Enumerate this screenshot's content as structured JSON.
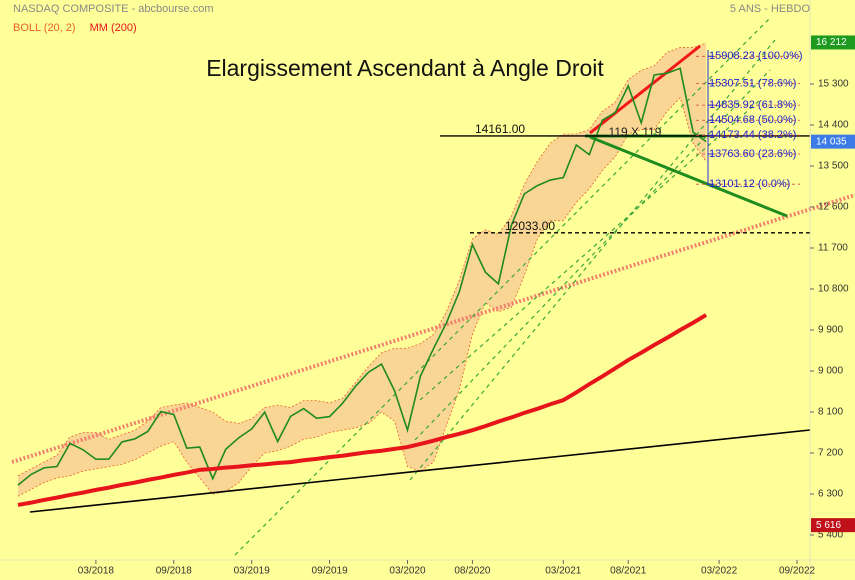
{
  "chart_data": {
    "type": "line",
    "title": "Elargissement Ascendant à Angle Droit",
    "subtitle": "NASDAQ COMPOSITE - abcbourse.com",
    "period": "5 ANS - HEBDO",
    "annotations": [
      "119 X 119"
    ],
    "x": [
      "09/2017",
      "10/2017",
      "11/2017",
      "12/2017",
      "01/2018",
      "02/2018",
      "03/2018",
      "04/2018",
      "05/2018",
      "06/2018",
      "07/2018",
      "08/2018",
      "09/2018",
      "10/2018",
      "11/2018",
      "12/2018",
      "01/2019",
      "02/2019",
      "03/2019",
      "04/2019",
      "05/2019",
      "06/2019",
      "07/2019",
      "08/2019",
      "09/2019",
      "10/2019",
      "11/2019",
      "12/2019",
      "01/2020",
      "02/2020",
      "03/2020",
      "04/2020",
      "05/2020",
      "06/2020",
      "07/2020",
      "08/2020",
      "09/2020",
      "10/2020",
      "11/2020",
      "12/2020",
      "01/2021",
      "02/2021",
      "03/2021",
      "04/2021",
      "05/2021",
      "06/2021",
      "07/2021",
      "08/2021",
      "09/2021",
      "10/2021",
      "11/2021",
      "12/2021",
      "01/2022",
      "02/2022"
    ],
    "series": [
      {
        "color": "#1f8a1f",
        "values": [
          6495,
          6728,
          6873,
          6903,
          7411,
          7273,
          7063,
          7066,
          7442,
          7510,
          7672,
          8109,
          8046,
          7306,
          7331,
          6635,
          7282,
          7533,
          7729,
          8095,
          7453,
          8006,
          8175,
          7963,
          7999,
          8292,
          8665,
          8973,
          9151,
          8567,
          7700,
          8890,
          9490,
          10058,
          10745,
          11775,
          11168,
          10912,
          12199,
          12888,
          13070,
          13192,
          13247,
          13962,
          13749,
          14504,
          14673,
          15259,
          14449,
          15498,
          15538,
          15645,
          14240,
          14035
        ]
      },
      {
        "name": "BOLL (20, 2)",
        "color": "#e8602c",
        "fill": "#f9cf94",
        "upper": [
          6700,
          6850,
          7000,
          7150,
          7550,
          7650,
          7650,
          7500,
          7600,
          7700,
          7900,
          8200,
          8250,
          8300,
          8200,
          8100,
          7900,
          7850,
          7950,
          8200,
          8250,
          8200,
          8350,
          8350,
          8300,
          8400,
          8750,
          9100,
          9400,
          9500,
          9500,
          9600,
          9800,
          10300,
          11000,
          11900,
          12100,
          12000,
          12400,
          13100,
          13600,
          14000,
          14200,
          14200,
          14300,
          14700,
          14900,
          15400,
          15600,
          15700,
          16000,
          16100,
          16100,
          16200
        ],
        "lower": [
          6250,
          6400,
          6550,
          6650,
          6700,
          6800,
          6850,
          6900,
          6950,
          7050,
          7200,
          7350,
          7450,
          7000,
          6650,
          6300,
          6350,
          6550,
          6900,
          7200,
          7250,
          7350,
          7500,
          7550,
          7650,
          7700,
          7750,
          7850,
          8100,
          7900,
          6900,
          6800,
          7000,
          7800,
          8600,
          9800,
          10500,
          10300,
          10400,
          11100,
          11900,
          12300,
          12300,
          12700,
          13000,
          13400,
          13700,
          14200,
          14300,
          14300,
          14700,
          15000,
          14000,
          13600
        ]
      },
      {
        "name": "MM (200)",
        "color": "#e8141c",
        "values": [
          6060,
          6110,
          6170,
          6220,
          6280,
          6330,
          6390,
          6440,
          6500,
          6550,
          6610,
          6660,
          6720,
          6770,
          6830,
          6850,
          6880,
          6900,
          6930,
          6950,
          6980,
          7000,
          7040,
          7070,
          7110,
          7140,
          7180,
          7220,
          7250,
          7290,
          7330,
          7400,
          7470,
          7550,
          7620,
          7700,
          7790,
          7890,
          7980,
          8080,
          8170,
          8270,
          8360,
          8530,
          8710,
          8880,
          9060,
          9240,
          9400,
          9570,
          9730,
          9900,
          10060,
          10230
        ]
      }
    ],
    "xlim": [
      "08/2017",
      "10/2022"
    ],
    "xticks": [
      "03/2018",
      "09/2018",
      "03/2019",
      "09/2019",
      "03/2020",
      "08/2020",
      "03/2021",
      "08/2021",
      "03/2022",
      "09/2022"
    ],
    "ylim": [
      4851,
      17144
    ],
    "yticks": [
      {
        "value": 5400,
        "label": "5 400"
      },
      {
        "value": 6300,
        "label": "6 300"
      },
      {
        "value": 7200,
        "label": "7 200"
      },
      {
        "value": 8100,
        "label": "8 100"
      },
      {
        "value": 9000,
        "label": "9 000"
      },
      {
        "value": 9900,
        "label": "9 900"
      },
      {
        "value": 10800,
        "label": "10 800"
      },
      {
        "value": 11700,
        "label": "11 700"
      },
      {
        "value": 12600,
        "label": "12 600"
      },
      {
        "value": 13500,
        "label": "13 500"
      },
      {
        "value": 14400,
        "label": "14 400"
      },
      {
        "value": 15300,
        "label": "15 300"
      }
    ],
    "grid": false,
    "price_tags": [
      {
        "value": 16212,
        "label": "16 212",
        "color": "#1e9a1e"
      },
      {
        "value": 14035,
        "label": "14 035",
        "color": "#3c7be6"
      },
      {
        "value": 5616,
        "label": "5 616",
        "color": "#c0101a"
      }
    ],
    "levels": [
      {
        "value": 14161,
        "label": "14161.00",
        "style": "solid"
      },
      {
        "value": 12033,
        "label": "12033.00",
        "style": "dashed"
      }
    ],
    "fibonacci": [
      {
        "value": 15908.23,
        "label": "15908.23 (100.0%)"
      },
      {
        "value": 15307.51,
        "label": "15307.51 (78.6%)"
      },
      {
        "value": 14835.92,
        "label": "14835.92 (61.8%)"
      },
      {
        "value": 14504.68,
        "label": "14504.68 (50.0%)"
      },
      {
        "value": 14173.44,
        "label": "14173.44 (38.2%)"
      },
      {
        "value": 13763.6,
        "label": "13763.60 (23.6%)"
      },
      {
        "value": 13101.12,
        "label": "13101.12 (0.0%)"
      }
    ]
  }
}
